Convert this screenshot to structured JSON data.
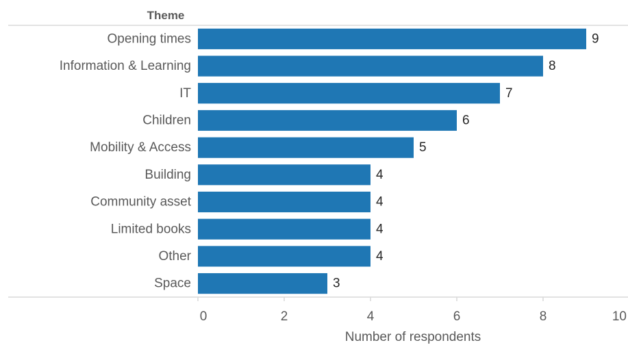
{
  "chart_data": {
    "type": "bar",
    "orientation": "horizontal",
    "category_header": "Theme",
    "categories": [
      "Opening times",
      "Information & Learning",
      "IT",
      "Children",
      "Mobility & Access",
      "Building",
      "Community asset",
      "Limited books",
      "Other",
      "Space"
    ],
    "values": [
      9,
      8,
      7,
      6,
      5,
      4,
      4,
      4,
      4,
      3
    ],
    "data_labels": [
      "9",
      "8",
      "7",
      "6",
      "5",
      "4",
      "4",
      "4",
      "4",
      "3"
    ],
    "xlabel": "Number of respondents",
    "xlim": [
      0,
      10
    ],
    "xticks": [
      0,
      2,
      4,
      6,
      8,
      10
    ],
    "xtick_labels": [
      "0",
      "2",
      "4",
      "6",
      "8",
      "10"
    ],
    "grid": false,
    "legend": "none",
    "colors": {
      "bar": "#1f77b4",
      "axis_line": "#d9d9d9",
      "label_text": "#595959",
      "value_text": "#262626"
    }
  }
}
